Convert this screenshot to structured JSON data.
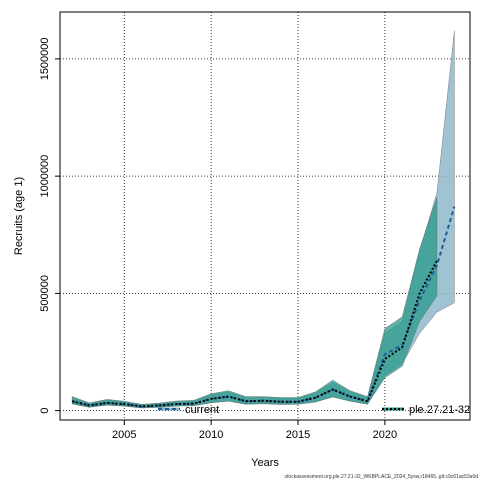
{
  "chart_data": {
    "type": "area",
    "xlabel": "Years",
    "ylabel": "Recruits (age 1)",
    "xlim": [
      2001.3,
      2024.9
    ],
    "ylim": [
      -40000,
      1700000
    ],
    "xticks": [
      2005,
      2010,
      2015,
      2020
    ],
    "yticks": [
      0,
      500000,
      1000000,
      1500000
    ],
    "ytick_labels": [
      "0",
      "500000",
      "1000000",
      "1500000"
    ],
    "grid": true,
    "series": [
      {
        "name": "current",
        "color": "#1f5c99",
        "band_color": "#8fb8cc",
        "x": [
          2002,
          2003,
          2004,
          2005,
          2006,
          2007,
          2008,
          2009,
          2010,
          2011,
          2012,
          2013,
          2014,
          2015,
          2016,
          2017,
          2018,
          2019,
          2020,
          2021,
          2022,
          2023,
          2024
        ],
        "median": [
          40000,
          22000,
          33000,
          28000,
          18000,
          22000,
          28000,
          30000,
          50000,
          60000,
          40000,
          42000,
          38000,
          38000,
          55000,
          90000,
          60000,
          40000,
          240000,
          280000,
          470000,
          620000,
          870000
        ],
        "lower": [
          30000,
          15000,
          24000,
          20000,
          12000,
          15000,
          20000,
          22000,
          35000,
          42000,
          28000,
          30000,
          27000,
          28000,
          38000,
          60000,
          42000,
          28000,
          150000,
          200000,
          330000,
          420000,
          460000
        ],
        "upper": [
          55000,
          30000,
          45000,
          38000,
          25000,
          30000,
          38000,
          40000,
          68000,
          80000,
          55000,
          56000,
          52000,
          52000,
          75000,
          120000,
          80000,
          55000,
          330000,
          380000,
          680000,
          930000,
          1620000
        ]
      },
      {
        "name": "ple.27.21-32",
        "color": "#0a5a4e",
        "band_color": "#2a9a8a",
        "x": [
          2002,
          2003,
          2004,
          2005,
          2006,
          2007,
          2008,
          2009,
          2010,
          2011,
          2012,
          2013,
          2014,
          2015,
          2016,
          2017,
          2018,
          2019,
          2020,
          2021,
          2022,
          2023
        ],
        "median": [
          40000,
          22000,
          33000,
          28000,
          18000,
          22000,
          28000,
          30000,
          50000,
          60000,
          40000,
          42000,
          38000,
          38000,
          55000,
          90000,
          60000,
          40000,
          220000,
          270000,
          500000,
          640000
        ],
        "lower": [
          28000,
          14000,
          23000,
          19000,
          11000,
          14000,
          19000,
          21000,
          33000,
          40000,
          27000,
          29000,
          26000,
          27000,
          36000,
          58000,
          40000,
          27000,
          140000,
          190000,
          380000,
          490000
        ],
        "upper": [
          60000,
          33000,
          48000,
          40000,
          27000,
          32000,
          41000,
          44000,
          72000,
          85000,
          60000,
          60000,
          56000,
          56000,
          80000,
          130000,
          85000,
          60000,
          350000,
          400000,
          690000,
          910000
        ]
      }
    ],
    "legend": [
      {
        "label": "current",
        "position": "bottom-left"
      },
      {
        "label": "ple.27.21-32",
        "position": "bottom-right"
      }
    ]
  },
  "footer_text": "stockassessment.org,ple.27.21-32_WKBPLACE_2024_5ysw,r18465..git:c9c61ac53a0d"
}
